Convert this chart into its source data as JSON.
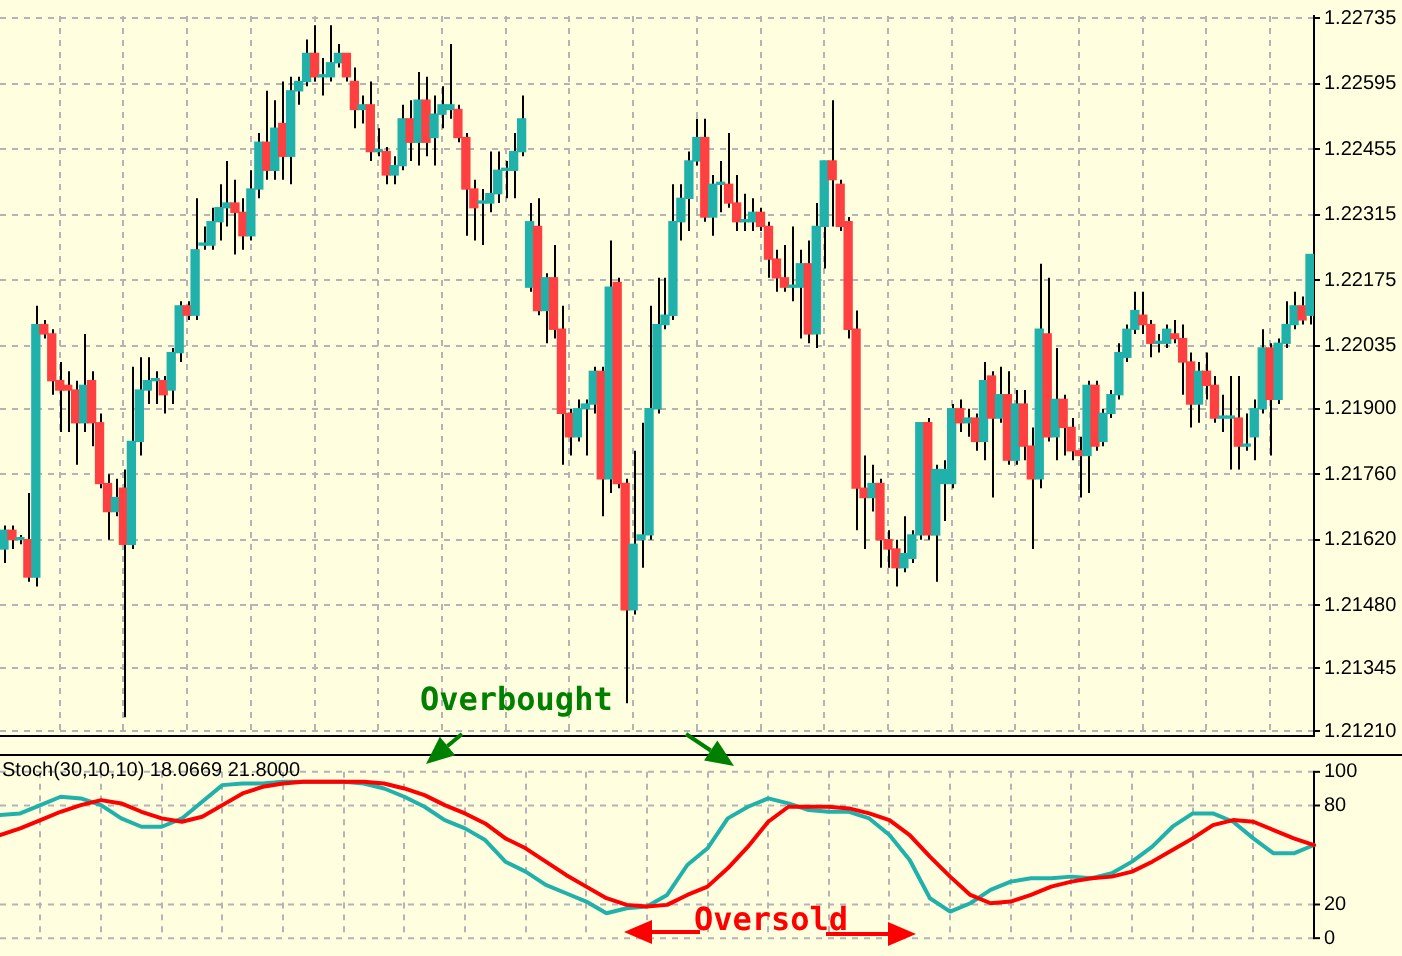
{
  "chart_data": [
    {
      "type": "candlestick",
      "categories": [
        null,
        null,
        null,
        null,
        null,
        null,
        null,
        null,
        null,
        null,
        null,
        null,
        null,
        null,
        null,
        null,
        null,
        null,
        null,
        null,
        null,
        null,
        null,
        null,
        null,
        null,
        null,
        null,
        null,
        null,
        null,
        null,
        null,
        null,
        null,
        null,
        null,
        null,
        null,
        null,
        null,
        null,
        null,
        null,
        null,
        null,
        null,
        null,
        null,
        null,
        null,
        null,
        null,
        null,
        null,
        null,
        null,
        null,
        null,
        null,
        null,
        null,
        null,
        null,
        null,
        null,
        null,
        null,
        null,
        null,
        null,
        null,
        null,
        null,
        null,
        null,
        null,
        null,
        null,
        null,
        null,
        null,
        null,
        null,
        null,
        null,
        null,
        null,
        null,
        null,
        null,
        null,
        null,
        null,
        null,
        null,
        null,
        null,
        null,
        null,
        null,
        null,
        null,
        null,
        null,
        null,
        null,
        null,
        null,
        null,
        null,
        null,
        null,
        null,
        null,
        null,
        null,
        null,
        null,
        null,
        null,
        null,
        null,
        null,
        null,
        null,
        null,
        null,
        null,
        null,
        null,
        null,
        null,
        null,
        null,
        null,
        null,
        null,
        null,
        null,
        null,
        null,
        null,
        null,
        null,
        null,
        null,
        null,
        null,
        null,
        null,
        null,
        null,
        null,
        null,
        null,
        null,
        null,
        null,
        null,
        null,
        null,
        null,
        null,
        null
      ],
      "ohlc": [
        [
          1.216,
          1.2165,
          1.2157,
          1.2164
        ],
        [
          1.2164,
          1.2165,
          1.216,
          1.2162
        ],
        [
          1.2162,
          1.2163,
          1.2161,
          1.2162
        ],
        [
          1.2162,
          1.2172,
          1.2153,
          1.2154
        ],
        [
          1.2154,
          1.2212,
          1.2152,
          1.2208
        ],
        [
          1.2208,
          1.2209,
          1.2205,
          1.2206
        ],
        [
          1.2206,
          1.2207,
          1.2193,
          1.2196
        ],
        [
          1.2196,
          1.22,
          1.2185,
          1.2194
        ],
        [
          1.2195,
          1.2198,
          1.2185,
          1.2194
        ],
        [
          1.2194,
          1.2196,
          1.2178,
          1.2187
        ],
        [
          1.2187,
          1.2206,
          1.2185,
          1.2195
        ],
        [
          1.2196,
          1.2198,
          1.2182,
          1.2187
        ],
        [
          1.2187,
          1.2189,
          1.2173,
          1.2174
        ],
        [
          1.2174,
          1.2176,
          1.2162,
          1.2168
        ],
        [
          1.2168,
          1.2175,
          1.2167,
          1.2171
        ],
        [
          1.2173,
          1.2177,
          1.2124,
          1.2161
        ],
        [
          1.2161,
          1.2199,
          1.216,
          1.2183
        ],
        [
          1.2183,
          1.2201,
          1.218,
          1.2194
        ],
        [
          1.2194,
          1.2201,
          1.2191,
          1.2196
        ],
        [
          1.2196,
          1.2198,
          1.2191,
          1.2196
        ],
        [
          1.2196,
          1.2197,
          1.2189,
          1.2193
        ],
        [
          1.2194,
          1.2203,
          1.2191,
          1.2202
        ],
        [
          1.2202,
          1.2213,
          1.22,
          1.2212
        ],
        [
          1.2212,
          1.2213,
          1.2209,
          1.221
        ],
        [
          1.221,
          1.2235,
          1.2209,
          1.2224
        ],
        [
          1.2225,
          1.2229,
          1.2224,
          1.2225
        ],
        [
          1.2225,
          1.2233,
          1.2224,
          1.223
        ],
        [
          1.223,
          1.2238,
          1.2226,
          1.2233
        ],
        [
          1.2233,
          1.2243,
          1.2229,
          1.2234
        ],
        [
          1.2234,
          1.2239,
          1.2223,
          1.2232
        ],
        [
          1.2232,
          1.2235,
          1.2224,
          1.2227
        ],
        [
          1.2227,
          1.2241,
          1.2226,
          1.2237
        ],
        [
          1.2237,
          1.2249,
          1.2235,
          1.2247
        ],
        [
          1.2247,
          1.2258,
          1.2239,
          1.2241
        ],
        [
          1.2241,
          1.2256,
          1.2239,
          1.225
        ],
        [
          1.2251,
          1.226,
          1.2239,
          1.2244
        ],
        [
          1.2244,
          1.2261,
          1.2238,
          1.2258
        ],
        [
          1.2258,
          1.2261,
          1.2255,
          1.226
        ],
        [
          1.226,
          1.2269,
          1.2259,
          1.2266
        ],
        [
          1.2266,
          1.2272,
          1.226,
          1.2261
        ],
        [
          1.2261,
          1.2265,
          1.2257,
          1.2261
        ],
        [
          1.2261,
          1.2272,
          1.226,
          1.2264
        ],
        [
          1.2264,
          1.2268,
          1.2263,
          1.2266
        ],
        [
          1.2266,
          1.2266,
          1.226,
          1.2261
        ],
        [
          1.226,
          1.2263,
          1.225,
          1.2254
        ],
        [
          1.2254,
          1.2257,
          1.2251,
          1.2255
        ],
        [
          1.2255,
          1.226,
          1.2243,
          1.2245
        ],
        [
          1.2245,
          1.225,
          1.2244,
          1.2245
        ],
        [
          1.2245,
          1.2246,
          1.2238,
          1.224
        ],
        [
          1.224,
          1.2244,
          1.2238,
          1.2242
        ],
        [
          1.2242,
          1.2255,
          1.2241,
          1.2252
        ],
        [
          1.2252,
          1.2256,
          1.2243,
          1.2247
        ],
        [
          1.2247,
          1.2262,
          1.2242,
          1.2256
        ],
        [
          1.2256,
          1.2261,
          1.2244,
          1.2247
        ],
        [
          1.2248,
          1.2257,
          1.2242,
          1.2253
        ],
        [
          1.2253,
          1.2259,
          1.225,
          1.2255
        ],
        [
          1.2254,
          1.2268,
          1.2252,
          1.2255
        ],
        [
          1.2254,
          1.2255,
          1.2247,
          1.2248
        ],
        [
          1.2248,
          1.2249,
          1.2227,
          1.2237
        ],
        [
          1.2237,
          1.2239,
          1.2226,
          1.2233
        ],
        [
          1.2234,
          1.2237,
          1.2225,
          1.2234
        ],
        [
          1.2234,
          1.2245,
          1.2232,
          1.2236
        ],
        [
          1.2236,
          1.2245,
          1.2234,
          1.2241
        ],
        [
          1.2241,
          1.2243,
          1.2235,
          1.2241
        ],
        [
          1.2241,
          1.2249,
          1.2235,
          1.2245
        ],
        [
          1.2245,
          1.2257,
          1.2244,
          1.2252
        ],
        [
          1.2216,
          1.2234,
          1.2215,
          1.223
        ],
        [
          1.2229,
          1.2235,
          1.221,
          1.2211
        ],
        [
          1.2211,
          1.2219,
          1.2204,
          1.2218
        ],
        [
          1.2218,
          1.2225,
          1.2205,
          1.2207
        ],
        [
          1.2207,
          1.2212,
          1.2178,
          1.2189
        ],
        [
          1.2189,
          1.219,
          1.218,
          1.2184
        ],
        [
          1.2184,
          1.2192,
          1.2183,
          1.219
        ],
        [
          1.219,
          1.2192,
          1.218,
          1.2191
        ],
        [
          1.2191,
          1.2199,
          1.2189,
          1.2198
        ],
        [
          1.2198,
          1.2199,
          1.2167,
          1.2175
        ],
        [
          1.2175,
          1.2226,
          1.2172,
          1.2216
        ],
        [
          1.2217,
          1.2218,
          1.2173,
          1.2174
        ],
        [
          1.2174,
          1.2175,
          1.2127,
          1.2147
        ],
        [
          1.2147,
          1.2181,
          1.2146,
          1.2161
        ],
        [
          1.2162,
          1.2187,
          1.2156,
          1.2163
        ],
        [
          1.2163,
          1.2212,
          1.2162,
          1.219
        ],
        [
          1.219,
          1.2218,
          1.2189,
          1.2208
        ],
        [
          1.2208,
          1.2218,
          1.2207,
          1.221
        ],
        [
          1.221,
          1.2238,
          1.2209,
          1.223
        ],
        [
          1.223,
          1.2238,
          1.2226,
          1.2235
        ],
        [
          1.2235,
          1.2245,
          1.2228,
          1.2243
        ],
        [
          1.2243,
          1.2252,
          1.2242,
          1.2248
        ],
        [
          1.2248,
          1.2252,
          1.223,
          1.2231
        ],
        [
          1.2231,
          1.224,
          1.2227,
          1.2238
        ],
        [
          1.2238,
          1.2243,
          1.2232,
          1.2238
        ],
        [
          1.2238,
          1.2249,
          1.2233,
          1.2234
        ],
        [
          1.2234,
          1.224,
          1.2228,
          1.223
        ],
        [
          1.223,
          1.2236,
          1.2228,
          1.223
        ],
        [
          1.223,
          1.2235,
          1.2228,
          1.2232
        ],
        [
          1.2232,
          1.2233,
          1.2228,
          1.2229
        ],
        [
          1.2229,
          1.223,
          1.2218,
          1.2222
        ],
        [
          1.2222,
          1.2224,
          1.2215,
          1.2218
        ],
        [
          1.2218,
          1.2225,
          1.2215,
          1.2216
        ],
        [
          1.2216,
          1.2229,
          1.2213,
          1.2216
        ],
        [
          1.2216,
          1.2224,
          1.2205,
          1.2221
        ],
        [
          1.2221,
          1.2226,
          1.2204,
          1.2206
        ],
        [
          1.2206,
          1.2234,
          1.2203,
          1.2229
        ],
        [
          1.2229,
          1.2243,
          1.222,
          1.2243
        ],
        [
          1.2243,
          1.2256,
          1.2229,
          1.2239
        ],
        [
          1.2238,
          1.2239,
          1.2228,
          1.2229
        ],
        [
          1.223,
          1.2231,
          1.2205,
          1.2207
        ],
        [
          1.2207,
          1.2211,
          1.2164,
          1.2173
        ],
        [
          1.2173,
          1.218,
          1.216,
          1.2171
        ],
        [
          1.2171,
          1.2178,
          1.2168,
          1.2174
        ],
        [
          1.2174,
          1.2175,
          1.2156,
          1.2162
        ],
        [
          1.2162,
          1.2164,
          1.2156,
          1.216
        ],
        [
          1.216,
          1.2162,
          1.2152,
          1.2156
        ],
        [
          1.2156,
          1.2167,
          1.2155,
          1.2159
        ],
        [
          1.2158,
          1.2164,
          1.2157,
          1.2163
        ],
        [
          1.2163,
          1.2187,
          1.2162,
          1.2187
        ],
        [
          1.2187,
          1.2188,
          1.2162,
          1.2163
        ],
        [
          1.2163,
          1.2178,
          1.2153,
          1.2177
        ],
        [
          1.2174,
          1.2179,
          1.2166,
          1.2177
        ],
        [
          1.2174,
          1.2191,
          1.2173,
          1.219
        ],
        [
          1.219,
          1.2192,
          1.2185,
          1.2187
        ],
        [
          1.2187,
          1.219,
          1.2184,
          1.2188
        ],
        [
          1.2188,
          1.2189,
          1.2181,
          1.2183
        ],
        [
          1.2183,
          1.22,
          1.2179,
          1.2196
        ],
        [
          1.2197,
          1.2198,
          1.2171,
          1.2188
        ],
        [
          1.2188,
          1.2199,
          1.2187,
          1.2193
        ],
        [
          1.2193,
          1.2198,
          1.2178,
          1.2179
        ],
        [
          1.2179,
          1.2194,
          1.2178,
          1.2191
        ],
        [
          1.2191,
          1.2194,
          1.2179,
          1.2182
        ],
        [
          1.2182,
          1.2186,
          1.216,
          1.2175
        ],
        [
          1.2175,
          1.2221,
          1.2173,
          1.2207
        ],
        [
          1.2206,
          1.2218,
          1.2183,
          1.2184
        ],
        [
          1.2184,
          1.2203,
          1.2179,
          1.2192
        ],
        [
          1.2192,
          1.2193,
          1.218,
          1.2186
        ],
        [
          1.2186,
          1.2188,
          1.2179,
          1.2181
        ],
        [
          1.2181,
          1.2184,
          1.2171,
          1.218
        ],
        [
          1.218,
          1.2196,
          1.2172,
          1.2195
        ],
        [
          1.2195,
          1.2196,
          1.2181,
          1.2182
        ],
        [
          1.2183,
          1.219,
          1.2182,
          1.2189
        ],
        [
          1.2189,
          1.2194,
          1.2188,
          1.2193
        ],
        [
          1.2193,
          1.2204,
          1.2192,
          1.2202
        ],
        [
          1.2201,
          1.2208,
          1.22,
          1.2207
        ],
        [
          1.2207,
          1.2215,
          1.2206,
          1.2211
        ],
        [
          1.221,
          1.2215,
          1.2206,
          1.2208
        ],
        [
          1.2208,
          1.2209,
          1.2201,
          1.2204
        ],
        [
          1.2204,
          1.2206,
          1.2202,
          1.2204
        ],
        [
          1.2204,
          1.2208,
          1.2203,
          1.2207
        ],
        [
          1.2206,
          1.2209,
          1.2204,
          1.2205
        ],
        [
          1.2205,
          1.2208,
          1.2193,
          1.22
        ],
        [
          1.22,
          1.2202,
          1.2186,
          1.2191
        ],
        [
          1.2191,
          1.22,
          1.2187,
          1.2198
        ],
        [
          1.2198,
          1.2202,
          1.2192,
          1.2195
        ],
        [
          1.2195,
          1.2197,
          1.2187,
          1.2188
        ],
        [
          1.2188,
          1.2193,
          1.2185,
          1.2188
        ],
        [
          1.2188,
          1.2197,
          1.2177,
          1.2188
        ],
        [
          1.2188,
          1.2197,
          1.2177,
          1.2182
        ],
        [
          1.2182,
          1.2189,
          1.2181,
          1.2182
        ],
        [
          1.2184,
          1.2192,
          1.2179,
          1.219
        ],
        [
          1.219,
          1.2207,
          1.2189,
          1.2203
        ],
        [
          1.2203,
          1.2204,
          1.218,
          1.2192
        ],
        [
          1.2192,
          1.2205,
          1.2191,
          1.2204
        ],
        [
          1.2204,
          1.2213,
          1.2203,
          1.2208
        ],
        [
          1.2208,
          1.2215,
          1.2207,
          1.2212
        ],
        [
          1.2212,
          1.2214,
          1.2208,
          1.2209
        ],
        [
          1.221,
          1.2223,
          1.2208,
          1.2223
        ]
      ],
      "colors": [
        "#20b2aa",
        "#ff4040",
        "#20b2aa",
        "#ff4040",
        "#20b2aa",
        "#ff4040",
        "#ff4040",
        "#ff4040",
        "#ff4040",
        "#ff4040",
        "#20b2aa",
        "#ff4040",
        "#ff4040",
        "#ff4040",
        "#20b2aa",
        "#ff4040",
        "#20b2aa",
        "#20b2aa",
        "#20b2aa",
        "#20b2aa",
        "#ff4040",
        "#20b2aa",
        "#20b2aa",
        "#ff4040",
        "#20b2aa",
        "#20b2aa",
        "#20b2aa",
        "#20b2aa",
        "#20b2aa",
        "#ff4040",
        "#ff4040",
        "#20b2aa",
        "#20b2aa",
        "#ff4040",
        "#20b2aa",
        "#ff4040",
        "#20b2aa",
        "#20b2aa",
        "#20b2aa",
        "#ff4040",
        "#20b2aa",
        "#20b2aa",
        "#20b2aa",
        "#ff4040",
        "#ff4040",
        "#20b2aa",
        "#ff4040",
        "#20b2aa",
        "#ff4040",
        "#20b2aa",
        "#20b2aa",
        "#ff4040",
        "#20b2aa",
        "#ff4040",
        "#20b2aa",
        "#20b2aa",
        "#20b2aa",
        "#ff4040",
        "#ff4040",
        "#ff4040",
        "#20b2aa",
        "#20b2aa",
        "#20b2aa",
        "#20b2aa",
        "#20b2aa",
        "#20b2aa",
        "#20b2aa",
        "#ff4040",
        "#20b2aa",
        "#ff4040",
        "#ff4040",
        "#ff4040",
        "#20b2aa",
        "#20b2aa",
        "#20b2aa",
        "#ff4040",
        "#20b2aa",
        "#ff4040",
        "#ff4040",
        "#20b2aa",
        "#20b2aa",
        "#20b2aa",
        "#20b2aa",
        "#20b2aa",
        "#20b2aa",
        "#20b2aa",
        "#20b2aa",
        "#20b2aa",
        "#ff4040",
        "#20b2aa",
        "#20b2aa",
        "#ff4040",
        "#ff4040",
        "#20b2aa",
        "#20b2aa",
        "#ff4040",
        "#ff4040",
        "#ff4040",
        "#ff4040",
        "#20b2aa",
        "#20b2aa",
        "#ff4040",
        "#20b2aa",
        "#20b2aa",
        "#ff4040",
        "#ff4040",
        "#ff4040",
        "#ff4040",
        "#ff4040",
        "#20b2aa",
        "#ff4040",
        "#ff4040",
        "#ff4040",
        "#20b2aa",
        "#20b2aa",
        "#20b2aa",
        "#ff4040",
        "#20b2aa",
        "#20b2aa",
        "#20b2aa",
        "#ff4040",
        "#20b2aa",
        "#ff4040",
        "#20b2aa",
        "#ff4040",
        "#20b2aa",
        "#ff4040",
        "#20b2aa",
        "#ff4040",
        "#ff4040",
        "#20b2aa",
        "#ff4040",
        "#20b2aa",
        "#ff4040",
        "#ff4040",
        "#ff4040",
        "#20b2aa",
        "#ff4040",
        "#20b2aa",
        "#20b2aa",
        "#20b2aa",
        "#20b2aa",
        "#20b2aa",
        "#ff4040",
        "#ff4040",
        "#20b2aa",
        "#20b2aa",
        "#ff4040",
        "#ff4040",
        "#ff4040",
        "#20b2aa",
        "#ff4040",
        "#ff4040",
        "#20b2aa",
        "#20b2aa",
        "#ff4040",
        "#20b2aa",
        "#20b2aa",
        "#20b2aa",
        "#ff4040",
        "#20b2aa",
        "#20b2aa",
        "#20b2aa",
        "#ff4040",
        "#20b2aa"
      ],
      "ylim": [
        1.212,
        1.2274
      ],
      "yticks": [
        1.22735,
        1.22595,
        1.22455,
        1.22315,
        1.22175,
        1.22035,
        {
          "value": 1.219,
          "label": "1.21900"
        },
        {
          "value": 1.2176,
          "label": "1.21760"
        },
        {
          "value": 1.2162,
          "label": "1.21620"
        },
        {
          "value": 1.2148,
          "label": "1.21480"
        },
        1.21345,
        {
          "value": 1.2121,
          "label": "1.21210"
        }
      ],
      "grid": true,
      "tick_labels": "y",
      "annotations": [
        "Overbought"
      ]
    },
    {
      "type": "line",
      "categories": [
        null,
        null,
        null,
        null,
        null,
        null,
        null,
        null,
        null,
        null,
        null,
        null,
        null,
        null,
        null,
        null,
        null,
        null,
        null,
        null,
        null,
        null,
        null,
        null,
        null,
        null,
        null,
        null,
        null,
        null,
        null,
        null,
        null,
        null,
        null,
        null,
        null,
        null,
        null,
        null,
        null,
        null,
        null,
        null,
        null,
        null,
        null,
        null,
        null,
        null,
        null,
        null,
        null,
        null,
        null,
        null,
        null,
        null,
        null,
        null,
        null,
        null,
        null,
        null,
        null,
        null
      ],
      "series": [
        {
          "color": "#20b2aa",
          "values": [
            74,
            75,
            80,
            85,
            84,
            80,
            72,
            67,
            67,
            72,
            82,
            92,
            93,
            93,
            94,
            94,
            94,
            94,
            93,
            90,
            85,
            79,
            71,
            66,
            59,
            46,
            40,
            32,
            27,
            22,
            15,
            18,
            19,
            26,
            44,
            54,
            72,
            79,
            84,
            81,
            77,
            76,
            76,
            72,
            62,
            47,
            24,
            16,
            21,
            29,
            34,
            36,
            36,
            37,
            36,
            39,
            46,
            55,
            67,
            75,
            75,
            70,
            60,
            51,
            51,
            56
          ]
        },
        {
          "color": "#ff0000",
          "values": [
            62,
            66,
            71,
            76,
            80,
            83,
            81,
            76,
            72,
            70,
            73,
            80,
            87,
            91,
            93,
            94,
            94,
            94,
            94,
            93,
            90,
            86,
            80,
            75,
            69,
            60,
            54,
            46,
            38,
            31,
            24,
            20,
            19,
            20,
            26,
            31,
            42,
            55,
            70,
            79,
            79,
            79,
            78,
            75,
            71,
            62,
            49,
            37,
            26,
            21,
            22,
            26,
            31,
            34,
            36,
            37,
            40,
            46,
            53,
            60,
            68,
            71,
            70,
            65,
            60,
            56
          ]
        }
      ],
      "ylim": [
        0,
        100
      ],
      "yticks": [
        100,
        80,
        20,
        0
      ],
      "grid": true,
      "tick_labels": "y",
      "marker": "none",
      "annotations": [
        "Stoch(30,10,10) 18.0669 21.8000",
        "Oversold"
      ]
    }
  ]
}
